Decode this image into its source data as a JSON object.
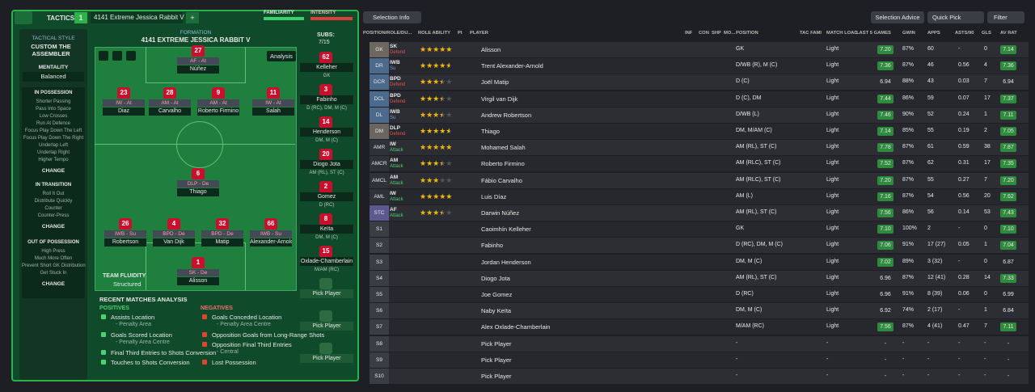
{
  "header": {
    "section": "TACTICS",
    "slot": "1",
    "tactic_name": "4141 Extreme Jessica Rabbit V",
    "add": "+",
    "familiarity": "FAMILIARITY",
    "intensity": "INTENSITY"
  },
  "style_panel": {
    "label": "TACTICAL STYLE",
    "style": "CUSTOM THE ASSEMBLER",
    "mentality_label": "MENTALITY",
    "mentality": "Balanced",
    "sections": [
      {
        "title": "IN POSSESSION",
        "items": [
          "Shorter Passing",
          "Pass Into Space",
          "Low Crosses",
          "Run At Defence",
          "Focus Play Down The Left",
          "Focus Play Down The Right",
          "Underlap Left",
          "Underlap Right",
          "Higher Tempo"
        ],
        "button": "CHANGE"
      },
      {
        "title": "IN TRANSITION",
        "items": [
          "Roll It Out",
          "Distribute Quickly",
          "Counter",
          "Counter-Press"
        ],
        "button": "CHANGE"
      },
      {
        "title": "OUT OF POSSESSION",
        "items": [
          "High Press",
          "Much More Often",
          "Prevent Short GK Distribution",
          "Get Stuck In"
        ],
        "button": "CHANGE"
      }
    ]
  },
  "pitch": {
    "label": "FORMATION",
    "formation": "4141 EXTREME JESSICA RABBIT V",
    "analysis": "Analysis",
    "fluidity_label": "TEAM FLUIDITY",
    "fluidity": "Structured",
    "players": [
      {
        "number": "27",
        "role": "AF - At",
        "name": "Núñez"
      },
      {
        "number": "23",
        "role": "IW - At",
        "name": "Diaz"
      },
      {
        "number": "28",
        "role": "AM - At",
        "name": "Carvalho"
      },
      {
        "number": "9",
        "role": "AM - At",
        "name": "Roberto Firmino"
      },
      {
        "number": "11",
        "role": "IW - At",
        "name": "Salah"
      },
      {
        "number": "6",
        "role": "DLP - De",
        "name": "Thiago"
      },
      {
        "number": "26",
        "role": "IWB - Su",
        "name": "Robertson"
      },
      {
        "number": "4",
        "role": "BPD - De",
        "name": "Van Dijk"
      },
      {
        "number": "32",
        "role": "BPD - De",
        "name": "Matip"
      },
      {
        "number": "66",
        "role": "IWB - Su",
        "name": "Alexander-Arnold"
      },
      {
        "number": "1",
        "role": "SK - De",
        "name": "Alisson"
      }
    ]
  },
  "subs": {
    "label": "SUBS:",
    "count": "7/15",
    "players": [
      {
        "number": "62",
        "name": "Kelleher",
        "position": "GK"
      },
      {
        "number": "3",
        "name": "Fabinho",
        "position": "D (RC), DM, M (C)"
      },
      {
        "number": "14",
        "name": "Henderson",
        "position": "DM, M (C)"
      },
      {
        "number": "20",
        "name": "Diogo Jota",
        "position": "AM (RL), ST (C)"
      },
      {
        "number": "2",
        "name": "Gomez",
        "position": "D (RC)"
      },
      {
        "number": "8",
        "name": "Keïta",
        "position": "DM, M (C)"
      },
      {
        "number": "15",
        "name": "Oxlade-Chamberlain",
        "position": "M/AM (RC)"
      },
      {
        "name": "Pick Player"
      },
      {
        "name": "Pick Player"
      },
      {
        "name": "Pick Player"
      }
    ]
  },
  "analysis": {
    "title": "RECENT MATCHES ANALYSIS",
    "positives_label": "POSITIVES",
    "negatives_label": "NEGATIVES",
    "positives": [
      {
        "text": "Assists Location",
        "detail": "- Penalty Area"
      },
      {
        "text": "Goals Scored Location",
        "detail": "- Penalty Area Centre"
      },
      {
        "text": "Final Third Entries to Shots Conversion"
      },
      {
        "text": "Touches to Shots Conversion"
      }
    ],
    "negatives": [
      {
        "text": "Goals Conceded Location",
        "detail": "- Penalty Area Centre"
      },
      {
        "text": "Opposition Goals from Long-Range Shots"
      },
      {
        "text": "Opposition Final Third Entries",
        "detail": "- Central"
      },
      {
        "text": "Lost Possession"
      }
    ]
  },
  "toolbar": {
    "selection_info": "Selection Info",
    "selection_advice": "Selection Advice",
    "quick_pick": "Quick Pick",
    "filter": "Filter"
  },
  "table": {
    "columns": [
      "POSITION/ROLE/DU...",
      "ROLE ABILITY",
      "PI",
      "PLAYER",
      "INF",
      "CON",
      "SHP",
      "MO...",
      "POSITION",
      "TAC FAMI",
      "MATCH LOAD",
      "LAST 5 GAMES",
      "GWIN",
      "APPS",
      "ASTS/90",
      "GLS",
      "AV RAT"
    ],
    "rows": [
      {
        "pos": "GK",
        "role": "SK",
        "duty": "Defend",
        "stars": 4.5,
        "name": "Alisson",
        "position": "GK",
        "load": "Light",
        "form": "7.20",
        "gwin": "87%",
        "apps": "60",
        "asts": "-",
        "gls": "0",
        "avrat": "7.14"
      },
      {
        "pos": "DR",
        "role": "IWB",
        "duty": "Su",
        "stars": 4,
        "name": "Trent Alexander-Arnold",
        "position": "D/WB (R), M (C)",
        "load": "Light",
        "form": "7.36",
        "gwin": "87%",
        "apps": "46",
        "asts": "0.56",
        "gls": "4",
        "avrat": "7.36"
      },
      {
        "pos": "DCR",
        "role": "BPD",
        "duty": "Defend",
        "stars": 3,
        "name": "Joël Matip",
        "position": "D (C)",
        "load": "Light",
        "form": "6.94",
        "gwin": "88%",
        "apps": "43",
        "asts": "0.03",
        "gls": "7",
        "avrat": "6.94"
      },
      {
        "pos": "DCL",
        "role": "BPD",
        "duty": "Defend",
        "stars": 3,
        "name": "Virgil van Dijk",
        "position": "D (C), DM",
        "load": "Light",
        "form": "7.44",
        "gwin": "86%",
        "apps": "59",
        "asts": "0.07",
        "gls": "17",
        "avrat": "7.37"
      },
      {
        "pos": "DL",
        "role": "IWB",
        "duty": "Su",
        "stars": 3,
        "name": "Andrew Robertson",
        "position": "D/WB (L)",
        "load": "Light",
        "form": "7.46",
        "gwin": "90%",
        "apps": "52",
        "asts": "0.24",
        "gls": "1",
        "avrat": "7.11"
      },
      {
        "pos": "DM",
        "role": "DLP",
        "duty": "Defend",
        "stars": 4,
        "name": "Thiago",
        "position": "DM, M/AM (C)",
        "load": "Light",
        "form": "7.14",
        "gwin": "85%",
        "apps": "55",
        "asts": "0.19",
        "gls": "2",
        "avrat": "7.05"
      },
      {
        "pos": "AMR",
        "role": "IW",
        "duty": "Attack",
        "stars": 5,
        "name": "Mohamed Salah",
        "position": "AM (RL), ST (C)",
        "load": "Light",
        "form": "7.78",
        "gwin": "87%",
        "apps": "61",
        "asts": "0.59",
        "gls": "38",
        "avrat": "7.87"
      },
      {
        "pos": "AMCR",
        "role": "AM",
        "duty": "Attack",
        "stars": 3,
        "name": "Roberto Firmino",
        "position": "AM (RLC), ST (C)",
        "load": "Light",
        "form": "7.52",
        "gwin": "87%",
        "apps": "62",
        "asts": "0.31",
        "gls": "17",
        "avrat": "7.35"
      },
      {
        "pos": "AMCL",
        "role": "AM",
        "duty": "Attack",
        "stars": 2.5,
        "name": "Fábio Carvalho",
        "position": "AM (RLC), ST (C)",
        "load": "Light",
        "form": "7.20",
        "gwin": "87%",
        "apps": "55",
        "asts": "0.27",
        "gls": "7",
        "avrat": "7.20"
      },
      {
        "pos": "AML",
        "role": "IW",
        "duty": "Attack",
        "stars": 4.5,
        "name": "Luis Díaz",
        "position": "AM (L)",
        "load": "Light",
        "form": "7.16",
        "gwin": "87%",
        "apps": "54",
        "asts": "0.56",
        "gls": "20",
        "avrat": "7.62"
      },
      {
        "pos": "STC",
        "role": "AF",
        "duty": "Attack",
        "stars": 3,
        "name": "Darwin Núñez",
        "position": "AM (RL), ST (C)",
        "load": "Light",
        "form": "7.56",
        "gwin": "86%",
        "apps": "56",
        "asts": "0.14",
        "gls": "53",
        "avrat": "7.43"
      },
      {
        "pos": "S1",
        "name": "Caoimhín Kelleher",
        "position": "GK",
        "load": "Light",
        "form": "7.10",
        "gwin": "100%",
        "apps": "2",
        "asts": "-",
        "gls": "0",
        "avrat": "7.10"
      },
      {
        "pos": "S2",
        "name": "Fabinho",
        "position": "D (RC), DM, M (C)",
        "load": "Light",
        "form": "7.06",
        "gwin": "91%",
        "apps": "17 (27)",
        "asts": "0.05",
        "gls": "1",
        "avrat": "7.04"
      },
      {
        "pos": "S3",
        "name": "Jordan Henderson",
        "position": "DM, M (C)",
        "load": "Light",
        "form": "7.02",
        "gwin": "89%",
        "apps": "3 (32)",
        "asts": "-",
        "gls": "0",
        "avrat": "6.87"
      },
      {
        "pos": "S4",
        "name": "Diogo Jota",
        "position": "AM (RL), ST (C)",
        "load": "Light",
        "form": "6.96",
        "gwin": "87%",
        "apps": "12 (41)",
        "asts": "0.28",
        "gls": "14",
        "avrat": "7.33"
      },
      {
        "pos": "S5",
        "name": "Joe Gomez",
        "position": "D (RC)",
        "load": "Light",
        "form": "6.96",
        "gwin": "91%",
        "apps": "8 (39)",
        "asts": "0.06",
        "gls": "0",
        "avrat": "6.99"
      },
      {
        "pos": "S6",
        "name": "Naby Keïta",
        "position": "DM, M (C)",
        "load": "Light",
        "form": "6.92",
        "gwin": "74%",
        "apps": "2 (17)",
        "asts": "-",
        "gls": "1",
        "avrat": "6.84"
      },
      {
        "pos": "S7",
        "name": "Alex Oxlade-Chamberlain",
        "position": "M/AM (RC)",
        "load": "Light",
        "form": "7.56",
        "gwin": "87%",
        "apps": "4 (41)",
        "asts": "0.47",
        "gls": "7",
        "avrat": "7.11"
      },
      {
        "pos": "S8",
        "name": "Pick Player",
        "position": "-",
        "load": "-",
        "form": "-",
        "gwin": "-",
        "apps": "-",
        "asts": "-",
        "gls": "-",
        "avrat": "-"
      },
      {
        "pos": "S9",
        "name": "Pick Player",
        "position": "-",
        "load": "-",
        "form": "-",
        "gwin": "-",
        "apps": "-",
        "asts": "-",
        "gls": "-",
        "avrat": "-"
      },
      {
        "pos": "S10",
        "name": "Pick Player",
        "position": "-",
        "load": "-",
        "form": "-",
        "gwin": "-",
        "apps": "-",
        "asts": "-",
        "gls": "-",
        "avrat": "-"
      }
    ]
  }
}
